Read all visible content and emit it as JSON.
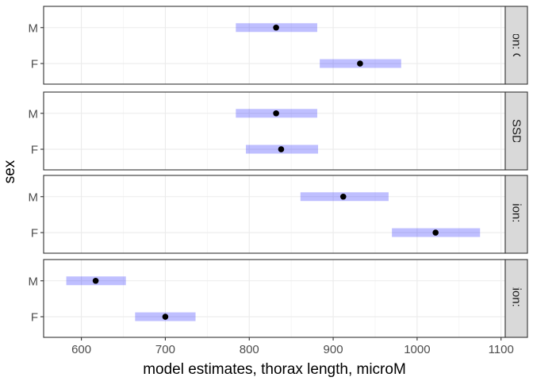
{
  "chart_data": {
    "type": "scatter",
    "xlabel": "model estimates, thorax length, microM",
    "ylabel": "sex",
    "xlim": [
      555,
      1105
    ],
    "x_ticks": [
      600,
      700,
      800,
      900,
      1000,
      1100
    ],
    "y_categories": [
      "M",
      "F"
    ],
    "grid": true,
    "facet_strip_position": "right",
    "facets": [
      {
        "strip_label": "selection: Control",
        "points": [
          {
            "sex": "M",
            "estimate": 832,
            "lower": 784,
            "upper": 881
          },
          {
            "sex": "F",
            "estimate": 932,
            "lower": 884,
            "upper": 981
          }
        ]
      },
      {
        "strip_label": "selection: SSD_reversed",
        "points": [
          {
            "sex": "M",
            "estimate": 832,
            "lower": 784,
            "upper": 881
          },
          {
            "sex": "F",
            "estimate": 838,
            "lower": 796,
            "upper": 882
          }
        ]
      },
      {
        "strip_label": "selection: Large",
        "points": [
          {
            "sex": "M",
            "estimate": 912,
            "lower": 861,
            "upper": 966
          },
          {
            "sex": "F",
            "estimate": 1022,
            "lower": 970,
            "upper": 1075
          }
        ]
      },
      {
        "strip_label": "selection: Small",
        "points": [
          {
            "sex": "M",
            "estimate": 617,
            "lower": 582,
            "upper": 653
          },
          {
            "sex": "F",
            "estimate": 700,
            "lower": 664,
            "upper": 736
          }
        ]
      }
    ],
    "colors": {
      "interval": "#0000ff",
      "interval_opacity": 0.25,
      "point": "#000000",
      "panel_border": "#333333",
      "grid_major": "#ebebeb",
      "strip_fill": "#d9d9d9"
    }
  }
}
